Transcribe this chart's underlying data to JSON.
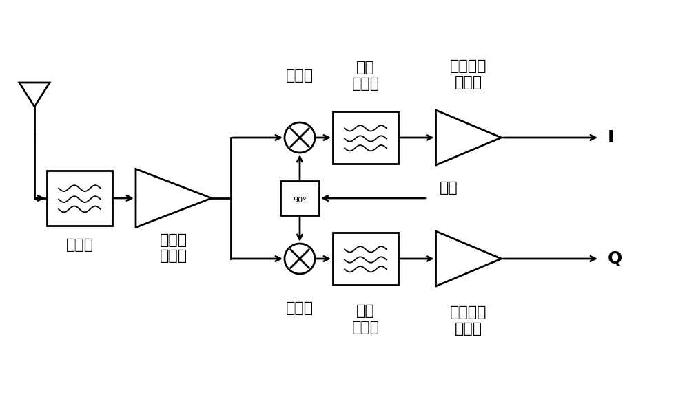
{
  "bg_color": "#ffffff",
  "line_color": "#000000",
  "labels": {
    "filter": "滤波器",
    "lna": "低噪声\n放大器",
    "mixer_top": "混频器",
    "mixer_bot": "混频器",
    "lpf_top": "低通\n滤波器",
    "lpf_bot": "低通\n滤波器",
    "vga_top": "可变增益\n放大器",
    "vga_bot": "可变增益\n放大器",
    "lo": "本振",
    "I": "I",
    "Q": "Q"
  },
  "figsize": [
    9.97,
    5.77
  ],
  "dpi": 100
}
